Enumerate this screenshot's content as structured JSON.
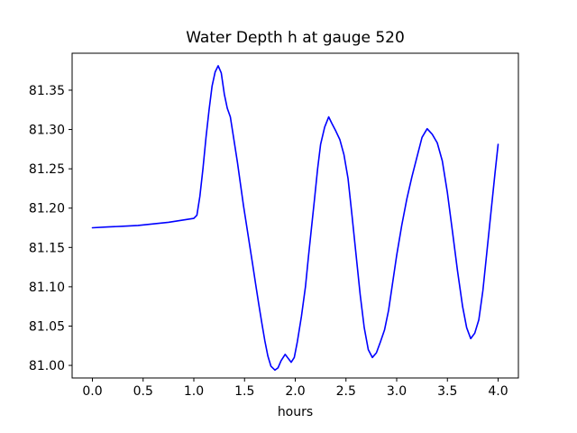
{
  "figure": {
    "background": "#ffffff"
  },
  "chart_data": {
    "type": "line",
    "title": "Water Depth h at gauge 520",
    "xlabel": "hours",
    "ylabel": "",
    "grid": false,
    "legend": "none",
    "xlim": [
      -0.2,
      4.2
    ],
    "ylim": [
      80.984,
      81.397
    ],
    "x_ticks": [
      0.0,
      0.5,
      1.0,
      1.5,
      2.0,
      2.5,
      3.0,
      3.5,
      4.0
    ],
    "x_tick_labels": [
      "0.0",
      "0.5",
      "1.0",
      "1.5",
      "2.0",
      "2.5",
      "3.0",
      "3.5",
      "4.0"
    ],
    "y_ticks": [
      81.0,
      81.05,
      81.1,
      81.15,
      81.2,
      81.25,
      81.3,
      81.35
    ],
    "y_tick_labels": [
      "81.00",
      "81.05",
      "81.10",
      "81.15",
      "81.20",
      "81.25",
      "81.30",
      "81.35"
    ],
    "line_color": "#0000ff",
    "line_width": 1.6,
    "axis_color": "#000000",
    "series": [
      {
        "name": "water-depth-h",
        "points": [
          [
            0.0,
            81.175
          ],
          [
            0.15,
            81.176
          ],
          [
            0.3,
            81.177
          ],
          [
            0.45,
            81.178
          ],
          [
            0.6,
            81.18
          ],
          [
            0.75,
            81.182
          ],
          [
            0.9,
            81.185
          ],
          [
            1.0,
            81.187
          ],
          [
            1.03,
            81.191
          ],
          [
            1.06,
            81.215
          ],
          [
            1.09,
            81.25
          ],
          [
            1.12,
            81.29
          ],
          [
            1.15,
            81.325
          ],
          [
            1.18,
            81.355
          ],
          [
            1.21,
            81.373
          ],
          [
            1.24,
            81.381
          ],
          [
            1.27,
            81.372
          ],
          [
            1.3,
            81.345
          ],
          [
            1.33,
            81.327
          ],
          [
            1.36,
            81.316
          ],
          [
            1.4,
            81.283
          ],
          [
            1.43,
            81.258
          ],
          [
            1.46,
            81.23
          ],
          [
            1.49,
            81.203
          ],
          [
            1.52,
            81.178
          ],
          [
            1.55,
            81.153
          ],
          [
            1.58,
            81.128
          ],
          [
            1.61,
            81.103
          ],
          [
            1.64,
            81.078
          ],
          [
            1.67,
            81.054
          ],
          [
            1.7,
            81.031
          ],
          [
            1.73,
            81.012
          ],
          [
            1.76,
            80.999
          ],
          [
            1.8,
            80.994
          ],
          [
            1.83,
            80.997
          ],
          [
            1.86,
            81.006
          ],
          [
            1.9,
            81.014
          ],
          [
            1.93,
            81.009
          ],
          [
            1.96,
            81.004
          ],
          [
            1.99,
            81.01
          ],
          [
            2.02,
            81.03
          ],
          [
            2.06,
            81.062
          ],
          [
            2.1,
            81.1
          ],
          [
            2.13,
            81.138
          ],
          [
            2.16,
            81.175
          ],
          [
            2.19,
            81.212
          ],
          [
            2.22,
            81.25
          ],
          [
            2.25,
            81.281
          ],
          [
            2.29,
            81.303
          ],
          [
            2.33,
            81.316
          ],
          [
            2.36,
            81.308
          ],
          [
            2.4,
            81.298
          ],
          [
            2.44,
            81.287
          ],
          [
            2.48,
            81.268
          ],
          [
            2.52,
            81.238
          ],
          [
            2.56,
            81.19
          ],
          [
            2.6,
            81.14
          ],
          [
            2.64,
            81.09
          ],
          [
            2.68,
            81.048
          ],
          [
            2.72,
            81.02
          ],
          [
            2.76,
            81.01
          ],
          [
            2.8,
            81.016
          ],
          [
            2.84,
            81.03
          ],
          [
            2.88,
            81.045
          ],
          [
            2.92,
            81.07
          ],
          [
            2.96,
            81.105
          ],
          [
            3.0,
            81.14
          ],
          [
            3.05,
            81.178
          ],
          [
            3.1,
            81.212
          ],
          [
            3.15,
            81.24
          ],
          [
            3.2,
            81.265
          ],
          [
            3.25,
            81.29
          ],
          [
            3.3,
            81.301
          ],
          [
            3.35,
            81.294
          ],
          [
            3.4,
            81.283
          ],
          [
            3.45,
            81.26
          ],
          [
            3.5,
            81.22
          ],
          [
            3.55,
            81.17
          ],
          [
            3.6,
            81.12
          ],
          [
            3.65,
            81.075
          ],
          [
            3.69,
            81.048
          ],
          [
            3.73,
            81.034
          ],
          [
            3.77,
            81.041
          ],
          [
            3.81,
            81.058
          ],
          [
            3.85,
            81.095
          ],
          [
            3.89,
            81.145
          ],
          [
            3.93,
            81.195
          ],
          [
            3.97,
            81.245
          ],
          [
            4.0,
            81.281
          ]
        ]
      }
    ]
  }
}
